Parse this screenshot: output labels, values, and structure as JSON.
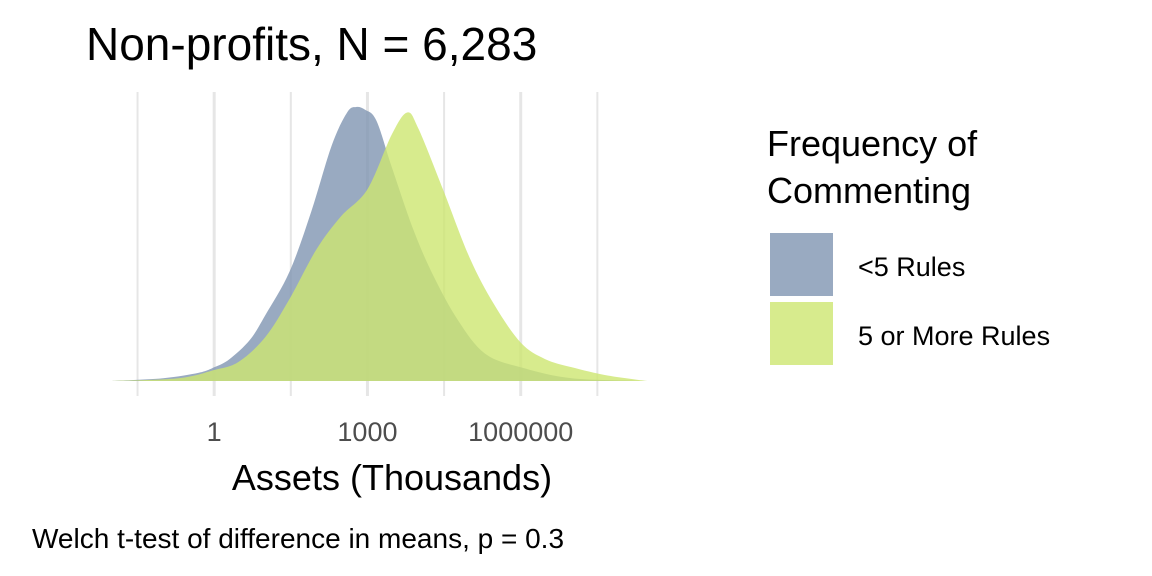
{
  "chart_data": {
    "type": "area",
    "title": "Non-profits, N = 6,283",
    "xlabel": "Assets (Thousands)",
    "ylabel": "",
    "caption": "Welch t-test of difference in means, p = 0.3",
    "x_scale": "log10",
    "xlim": [
      0.01,
      1000000000
    ],
    "x_ticks": [
      1,
      1000,
      1000000
    ],
    "x_tick_labels": [
      "1",
      "1000",
      "1000000"
    ],
    "grid": true,
    "legend": {
      "title_lines": [
        "Frequency of",
        "Commenting"
      ],
      "position": "right"
    },
    "series": [
      {
        "name": "<5 Rules",
        "color": "#7f95b1",
        "points": [
          [
            0.01,
            0.0
          ],
          [
            0.1,
            0.01
          ],
          [
            0.5,
            0.03
          ],
          [
            1,
            0.05
          ],
          [
            2,
            0.08
          ],
          [
            5,
            0.15
          ],
          [
            10,
            0.24
          ],
          [
            30,
            0.4
          ],
          [
            80,
            0.62
          ],
          [
            200,
            0.86
          ],
          [
            400,
            0.98
          ],
          [
            600,
            1.0
          ],
          [
            900,
            0.99
          ],
          [
            1500,
            0.95
          ],
          [
            3000,
            0.78
          ],
          [
            8000,
            0.55
          ],
          [
            20000,
            0.38
          ],
          [
            60000,
            0.22
          ],
          [
            200000,
            0.1
          ],
          [
            1000000,
            0.05
          ],
          [
            10000000,
            0.01
          ],
          [
            300000000,
            0.0
          ]
        ]
      },
      {
        "name": "5 or More Rules",
        "color": "#cde670",
        "points": [
          [
            0.01,
            0.0
          ],
          [
            0.2,
            0.01
          ],
          [
            1,
            0.04
          ],
          [
            3,
            0.07
          ],
          [
            10,
            0.16
          ],
          [
            30,
            0.3
          ],
          [
            100,
            0.48
          ],
          [
            300,
            0.6
          ],
          [
            1000,
            0.7
          ],
          [
            3000,
            0.9
          ],
          [
            6000,
            0.98
          ],
          [
            10000,
            0.92
          ],
          [
            30000,
            0.7
          ],
          [
            100000,
            0.45
          ],
          [
            300000,
            0.28
          ],
          [
            1000000,
            0.14
          ],
          [
            3000000,
            0.08
          ],
          [
            10000000,
            0.05
          ],
          [
            50000000,
            0.02
          ],
          [
            300000000,
            0.0
          ]
        ]
      }
    ]
  }
}
